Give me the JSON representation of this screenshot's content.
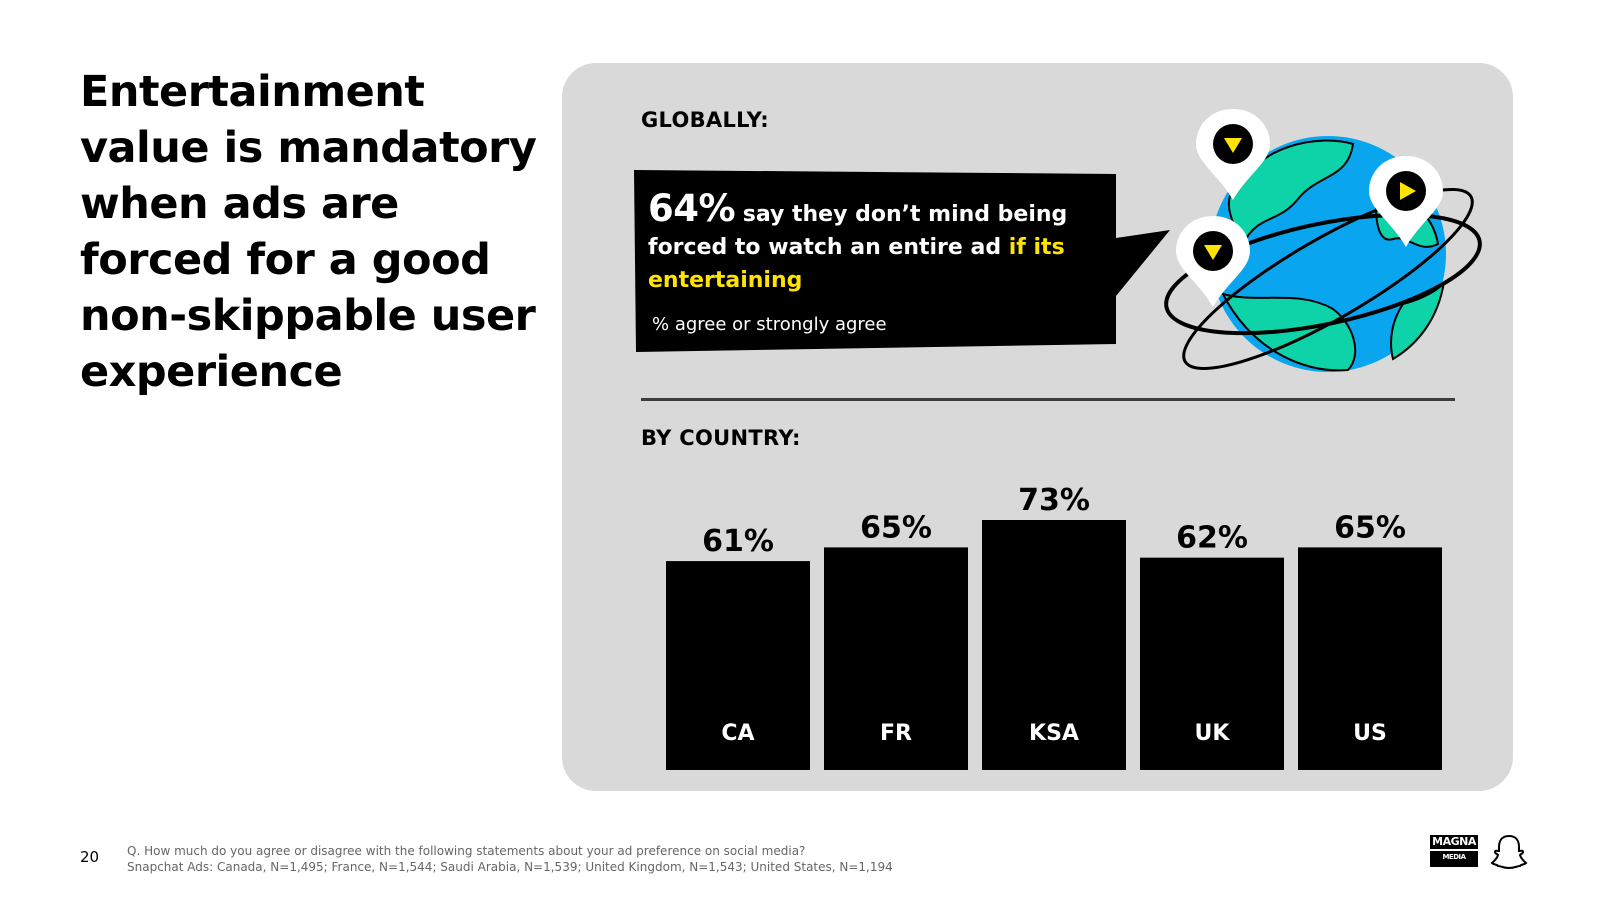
{
  "headline": "Entertainment value is mandatory when ads are forced for a good non-skippable user experience",
  "globally_label": "GLOBALLY:",
  "callout": {
    "stat": "64%",
    "text_plain": " say they don’t mind being forced to watch an entire ad ",
    "text_highlight": "if its entertaining",
    "subtext": "% agree or strongly agree"
  },
  "by_country_label": "BY COUNTRY:",
  "chart_data": {
    "type": "bar",
    "title": "BY COUNTRY:",
    "categories": [
      "CA",
      "FR",
      "KSA",
      "UK",
      "US"
    ],
    "values": [
      61,
      65,
      73,
      62,
      65
    ],
    "value_labels": [
      "61%",
      "65%",
      "73%",
      "62%",
      "65%"
    ],
    "unit": "%",
    "ylim": [
      0,
      100
    ],
    "grid": false,
    "colors": {
      "bar": "#000000",
      "bar_label": "#ffffff",
      "value_label": "#000000"
    }
  },
  "footer": {
    "page_number": "20",
    "question": "Q. How much do you agree or disagree with the following statements about your ad preference on social media?",
    "sample": "Snapchat Ads: Canada, N=1,495; France, N=1,544; Saudi Arabia, N=1,539; United Kingdom, N=1,543; United States, N=1,194"
  },
  "logos": {
    "magna_top": "MAGNA",
    "magna_bottom": "MEDIA TRIALS"
  },
  "icons": [
    "globe-icon",
    "location-pin-icon",
    "play-icon",
    "snapchat-ghost-icon"
  ],
  "colors": {
    "panel": "#d9d9d9",
    "highlight": "#ffe400",
    "globe_ocean": "#0aa5ef",
    "globe_land": "#0fd3a8"
  }
}
